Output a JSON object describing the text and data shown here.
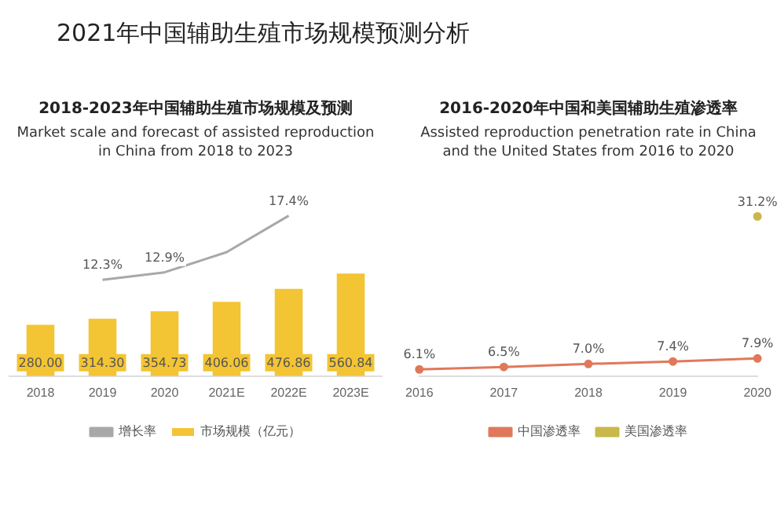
{
  "chart_data": [
    {
      "type": "bar",
      "title": "2018-2023年中国辅助生殖市场规模及预测",
      "subtitle": "Market scale and forecast of assisted reproduction in China from 2018 to 2023",
      "annotations": [
        "2021年中国辅助生殖市场规模预测分析"
      ],
      "categories": [
        "2018",
        "2019",
        "2020",
        "2021E",
        "2022E",
        "2023E"
      ],
      "series": [
        {
          "name": "市场规模（亿元）",
          "type": "bar",
          "color": "#f3c433",
          "values": [
            280.0,
            314.3,
            354.73,
            406.06,
            476.86,
            560.84
          ],
          "value_labels": [
            "280.00",
            "314.30",
            "354.73",
            "406.06",
            "476.86",
            "560.84"
          ]
        },
        {
          "name": "增长率",
          "type": "line",
          "axis": "y2",
          "color": "#a8a8a8",
          "values": [
            null,
            12.3,
            12.9,
            14.5,
            17.4,
            null
          ],
          "value_labels": [
            null,
            "12.3%",
            "12.9%",
            null,
            "17.4%",
            null
          ]
        }
      ],
      "legend": "bottom",
      "grid": false,
      "tick_labels": "x",
      "marker": "none"
    },
    {
      "type": "line",
      "title": "2016-2020年中国和美国辅助生殖渗透率",
      "subtitle": "Assisted reproduction penetration rate in China and the United States from 2016 to 2020",
      "categories": [
        "2016",
        "2017",
        "2018",
        "2019",
        "2020"
      ],
      "series": [
        {
          "name": "中国渗透率",
          "color": "#e0785a",
          "values": [
            6.1,
            6.5,
            7.0,
            7.4,
            7.9
          ],
          "value_labels": [
            "6.1%",
            "6.5%",
            "7.0%",
            "7.4%",
            "7.9%"
          ]
        },
        {
          "name": "美国渗透率",
          "color": "#c9b84a",
          "values": [
            null,
            null,
            null,
            null,
            31.2
          ],
          "value_labels": [
            null,
            null,
            null,
            null,
            "31.2%"
          ]
        }
      ],
      "legend": "bottom",
      "grid": false,
      "tick_labels": "x",
      "marker": "circle"
    }
  ]
}
